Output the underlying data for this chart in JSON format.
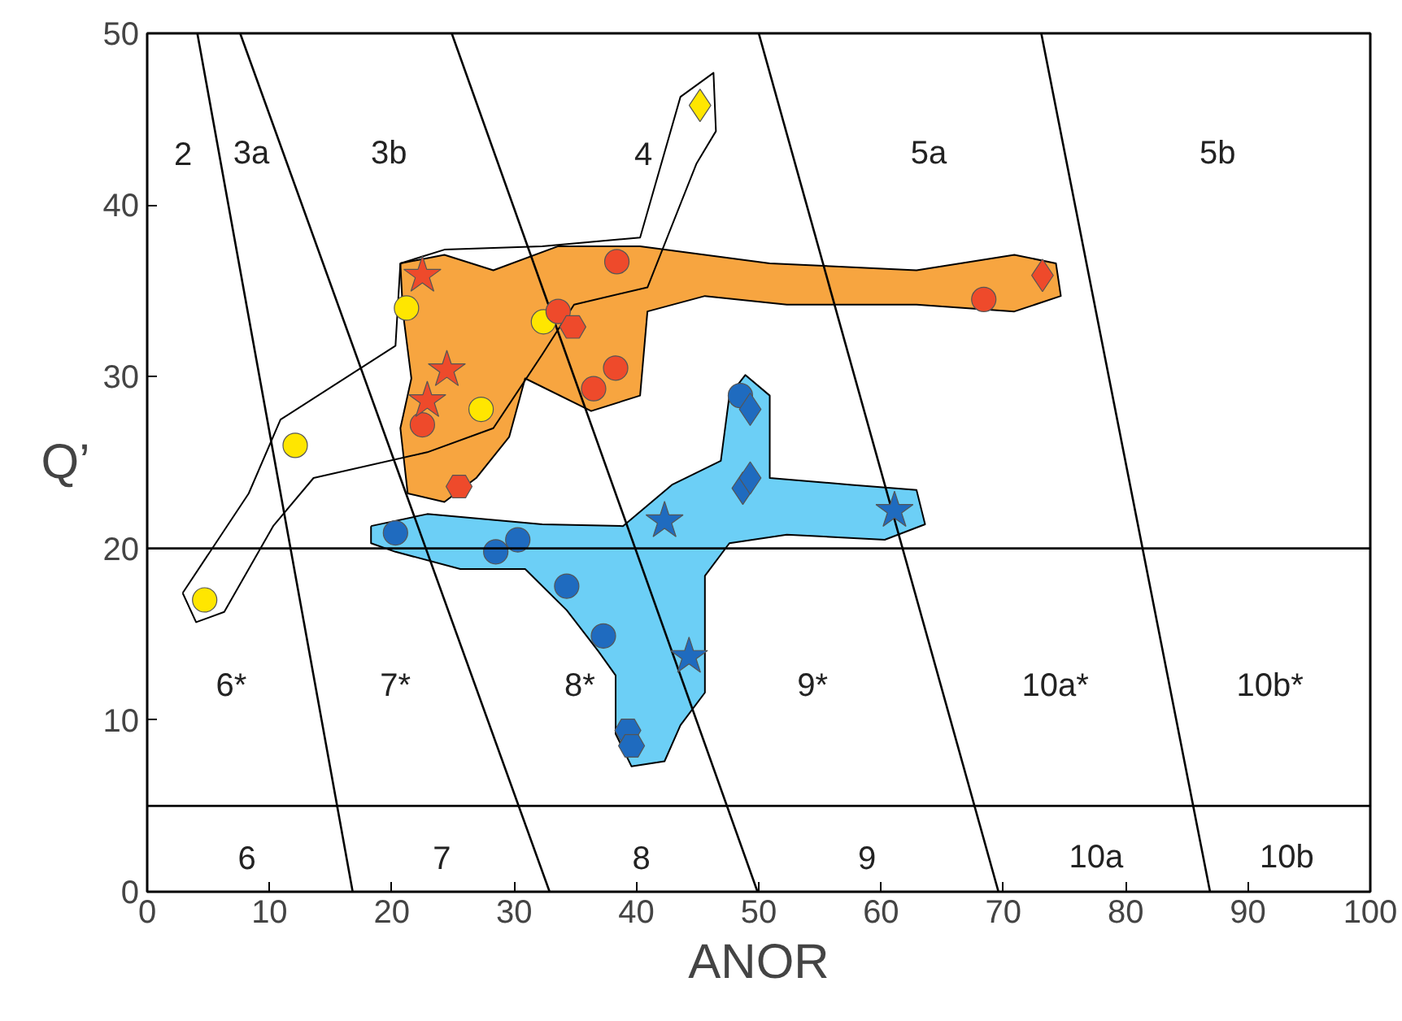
{
  "chart_data": {
    "type": "scatter",
    "xlabel": "ANOR",
    "ylabel": "Q’",
    "xlim": [
      0,
      100
    ],
    "ylim": [
      0,
      50
    ],
    "xticks": [
      0,
      10,
      20,
      30,
      40,
      50,
      60,
      70,
      80,
      90,
      100
    ],
    "yticks": [
      0,
      10,
      20,
      30,
      40,
      50
    ],
    "grid": false,
    "ref_lines": [
      {
        "axis": "y",
        "value": 20,
        "color": "#000000"
      },
      {
        "axis": "y",
        "value": 5,
        "color": "#000000"
      }
    ],
    "series": [
      {
        "type": "area",
        "color": "#ffffff",
        "x": [
          2.9,
          8.3,
          10.9,
          20.3,
          20.7,
          24.3,
          32.3,
          40.3,
          43.6,
          46.3,
          46.5,
          44.9,
          40.9,
          34.9,
          32.3,
          28.3,
          22.9,
          13.6,
          10.3,
          6.3,
          4.0
        ],
        "values": [
          17.4,
          23.2,
          27.5,
          31.8,
          36.6,
          37.4,
          37.6,
          38.1,
          46.3,
          47.7,
          44.3,
          42.4,
          35.2,
          34.2,
          31.3,
          27.0,
          25.6,
          24.1,
          21.3,
          16.3,
          15.7
        ]
      },
      {
        "type": "area",
        "color": "#f7a540",
        "x": [
          20.7,
          24.3,
          28.3,
          33.6,
          40.3,
          50.9,
          62.9,
          70.9,
          74.3,
          74.7,
          70.9,
          62.9,
          52.3,
          45.6,
          40.9,
          40.3,
          36.3,
          30.9,
          29.6,
          26.9,
          24.3,
          21.3,
          20.7,
          21.6,
          20.9
        ],
        "values": [
          36.6,
          37.1,
          36.2,
          37.6,
          37.6,
          36.6,
          36.2,
          37.1,
          36.6,
          34.7,
          33.8,
          34.2,
          34.2,
          34.7,
          33.8,
          28.9,
          28.0,
          29.9,
          26.5,
          24.1,
          22.7,
          23.2,
          27.0,
          29.9,
          33.8
        ]
      },
      {
        "type": "area",
        "color": "#6ccff6",
        "x": [
          18.3,
          22.9,
          32.3,
          38.9,
          42.9,
          46.9,
          47.6,
          48.9,
          50.9,
          50.9,
          57.6,
          62.9,
          63.6,
          60.3,
          52.3,
          47.6,
          45.6,
          45.6,
          43.6,
          42.3,
          39.6,
          38.3,
          38.3,
          36.9,
          34.3,
          30.9,
          25.6,
          20.3,
          18.3
        ],
        "values": [
          21.3,
          22.0,
          21.4,
          21.3,
          23.7,
          25.1,
          28.9,
          30.1,
          28.9,
          24.1,
          23.7,
          23.4,
          21.4,
          20.5,
          20.8,
          20.3,
          18.4,
          11.6,
          9.7,
          7.6,
          7.3,
          9.2,
          12.6,
          14.0,
          16.4,
          18.8,
          18.8,
          19.8,
          20.3
        ]
      },
      {
        "type": "line",
        "color": "#000000",
        "marker": "none",
        "x": [
          4.1,
          16.8
        ],
        "values": [
          50,
          0
        ]
      },
      {
        "type": "line",
        "color": "#000000",
        "marker": "none",
        "x": [
          7.6,
          32.9
        ],
        "values": [
          50,
          0
        ]
      },
      {
        "type": "line",
        "color": "#000000",
        "marker": "none",
        "x": [
          24.9,
          49.9
        ],
        "values": [
          50,
          0
        ]
      },
      {
        "type": "line",
        "color": "#000000",
        "marker": "none",
        "x": [
          50.0,
          69.6
        ],
        "values": [
          50,
          0
        ]
      },
      {
        "type": "line",
        "color": "#000000",
        "marker": "none",
        "x": [
          73.1,
          86.9
        ],
        "values": [
          50,
          0
        ]
      },
      {
        "type": "scatter",
        "color": "#ffe600",
        "marker": "circle",
        "x": [
          4.7,
          12.1,
          21.2,
          27.3,
          32.4
        ],
        "values": [
          17.0,
          26.0,
          34.0,
          28.1,
          33.2
        ]
      },
      {
        "type": "scatter",
        "color": "#ffe600",
        "marker": "diamond",
        "x": [
          45.2
        ],
        "values": [
          45.8
        ]
      },
      {
        "type": "scatter",
        "color": "#ee4a2b",
        "marker": "circle",
        "x": [
          22.5,
          38.4,
          36.5,
          38.3,
          33.6,
          68.4
        ],
        "values": [
          27.2,
          36.7,
          29.3,
          30.5,
          33.8,
          34.5
        ]
      },
      {
        "type": "scatter",
        "color": "#ee4a2b",
        "marker": "star",
        "x": [
          22.5,
          22.9,
          24.5
        ],
        "values": [
          35.9,
          28.6,
          30.4
        ]
      },
      {
        "color": "#ee4a2b",
        "x": [
          25.5,
          34.8
        ],
        "values": [
          23.6,
          32.9
        ]
      },
      {
        "type": "scatter",
        "color": "#ee4a2b",
        "marker": "diamond",
        "x": [
          73.2
        ],
        "values": [
          35.9
        ]
      },
      {
        "type": "scatter",
        "color": "#1f6bbf",
        "marker": "circle",
        "x": [
          20.3,
          28.5,
          30.3,
          34.3,
          37.3,
          48.5
        ],
        "values": [
          20.9,
          19.8,
          20.5,
          17.8,
          14.9,
          28.9
        ]
      },
      {
        "type": "scatter",
        "color": "#1f6bbf",
        "marker": "diamond",
        "x": [
          49.3,
          48.7,
          49.3
        ],
        "values": [
          28.1,
          23.5,
          24.1
        ]
      },
      {
        "type": "scatter",
        "color": "#1f6bbf",
        "marker": "star",
        "x": [
          42.3,
          61.1,
          44.3
        ],
        "values": [
          21.6,
          22.2,
          13.7
        ]
      },
      {
        "color": "#1f6bbf",
        "x": [
          39.3,
          39.6
        ],
        "values": [
          9.4,
          8.5
        ]
      }
    ],
    "annotations": [
      "2",
      "3a",
      "3b",
      "4",
      "5a",
      "5b",
      "6*",
      "7*",
      "8*",
      "9*",
      "10a*",
      "10b*",
      "6",
      "7",
      "8",
      "9",
      "10a",
      "10b"
    ]
  }
}
